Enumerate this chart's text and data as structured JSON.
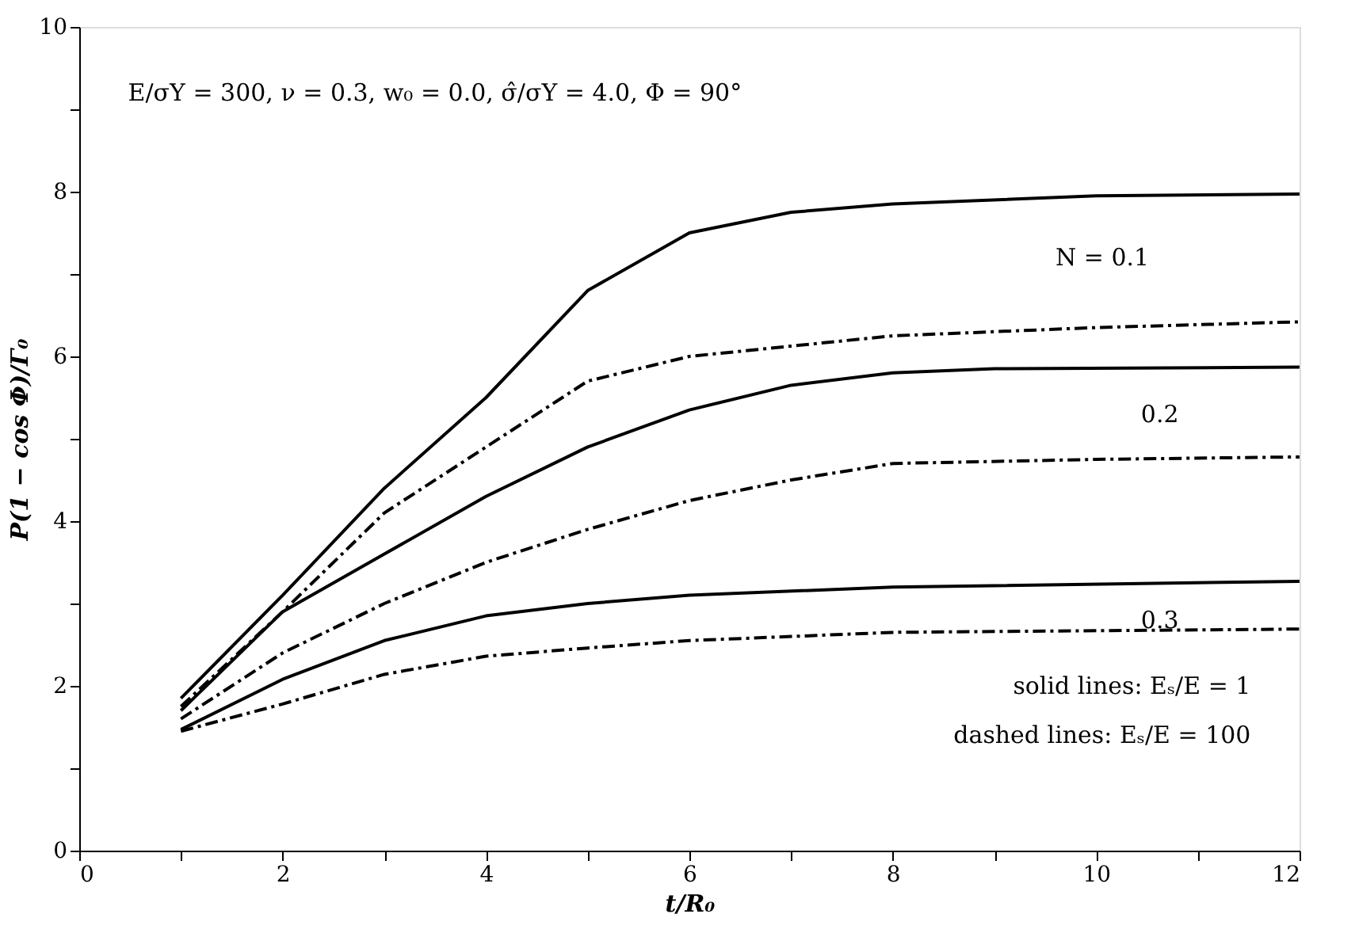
{
  "chart_data": {
    "type": "line",
    "xlabel": "t/R₀",
    "ylabel": "P(1 − cos Φ)/Γ₀",
    "xlim": [
      0,
      12
    ],
    "ylim": [
      0,
      10
    ],
    "xticks": [
      0,
      {
        "value": 1,
        "label": null
      },
      2,
      {
        "value": 3,
        "label": null
      },
      4,
      {
        "value": 5,
        "label": null
      },
      6,
      {
        "value": 7,
        "label": null
      },
      8,
      {
        "value": 9,
        "label": null
      },
      10,
      {
        "value": 11,
        "label": null
      },
      12
    ],
    "yticks": [
      0,
      {
        "value": 1,
        "label": null
      },
      2,
      {
        "value": 3,
        "label": null
      },
      4,
      {
        "value": 5,
        "label": null
      },
      6,
      {
        "value": 7,
        "label": null
      },
      8,
      {
        "value": 9,
        "label": null
      },
      10
    ],
    "grid": false,
    "marker": "none",
    "series": [
      {
        "color": "#000000",
        "line_style": "solid",
        "x": [
          1,
          2,
          3,
          4,
          5,
          6,
          7,
          8,
          10,
          12
        ],
        "values": [
          1.85,
          3.1,
          4.4,
          5.5,
          6.8,
          7.5,
          7.75,
          7.85,
          7.95,
          7.97
        ]
      },
      {
        "color": "#000000",
        "line_style": "dashed",
        "x": [
          1,
          2,
          3,
          4,
          5,
          6,
          8,
          10,
          12
        ],
        "values": [
          1.75,
          2.9,
          4.1,
          4.9,
          5.7,
          6.0,
          6.25,
          6.35,
          6.42
        ]
      },
      {
        "color": "#000000",
        "line_style": "solid",
        "x": [
          1,
          2,
          3,
          4,
          5,
          6,
          7,
          8,
          9,
          12
        ],
        "values": [
          1.7,
          2.9,
          3.6,
          4.3,
          4.9,
          5.35,
          5.65,
          5.8,
          5.85,
          5.87
        ]
      },
      {
        "color": "#000000",
        "line_style": "dashed",
        "x": [
          1,
          2,
          3,
          4,
          5,
          6,
          7,
          8,
          10,
          12
        ],
        "values": [
          1.6,
          2.4,
          3.0,
          3.5,
          3.9,
          4.25,
          4.5,
          4.7,
          4.75,
          4.78
        ]
      },
      {
        "color": "#000000",
        "line_style": "solid",
        "x": [
          1,
          2,
          3,
          4,
          5,
          6,
          8,
          12
        ],
        "values": [
          1.47,
          2.08,
          2.55,
          2.85,
          3.0,
          3.1,
          3.2,
          3.27
        ]
      },
      {
        "color": "#000000",
        "line_style": "dashed",
        "x": [
          1,
          2,
          3,
          4,
          5,
          6,
          8,
          12
        ],
        "values": [
          1.45,
          1.78,
          2.14,
          2.36,
          2.46,
          2.55,
          2.65,
          2.69
        ]
      }
    ],
    "annotations": [
      "E/σY = 300, ν = 0.3, w₀ = 0.0, σ̂/σY = 4.0, Φ = 90°",
      "N = 0.1",
      "0.2",
      "0.3",
      "solid lines: Eₛ/E = 1",
      "dashed lines: Eₛ/E = 100"
    ]
  }
}
